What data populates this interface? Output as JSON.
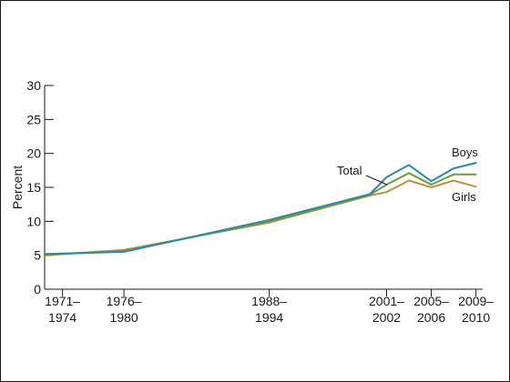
{
  "chart_data": {
    "type": "line",
    "title": "",
    "ylabel": "Percent",
    "xlabel": "",
    "ylim": [
      0,
      30
    ],
    "yticks": [
      0,
      5,
      10,
      15,
      20,
      25,
      30
    ],
    "x_ticks": [
      {
        "x": 1972.5,
        "line1": "1971–",
        "line2": "1974"
      },
      {
        "x": 1978,
        "line1": "1976–",
        "line2": "1980"
      },
      {
        "x": 1991,
        "line1": "1988–",
        "line2": "1994"
      },
      {
        "x": 2001.5,
        "line1": "2001–",
        "line2": "2002"
      },
      {
        "x": 2005.5,
        "line1": "2005–",
        "line2": "2006"
      },
      {
        "x": 2009.5,
        "line1": "2009–",
        "line2": "2010"
      }
    ],
    "x_range": [
      1970.9,
      2010.1
    ],
    "grid": false,
    "series": [
      {
        "name": "Boys",
        "color": "#2a8aa6",
        "x": [
          1971,
          1978,
          1991,
          2000,
          2001.5,
          2003.5,
          2005.5,
          2007.5,
          2009.5
        ],
        "values": [
          5.2,
          5.5,
          10.2,
          14.0,
          16.5,
          18.3,
          15.9,
          17.8,
          18.6
        ]
      },
      {
        "name": "Total",
        "color": "#6e9a3e",
        "x": [
          1971,
          1978,
          1991,
          2000,
          2001.5,
          2003.5,
          2005.5,
          2007.5,
          2009.5
        ],
        "values": [
          5.1,
          5.6,
          10.0,
          13.9,
          15.4,
          17.1,
          15.4,
          16.9,
          16.9
        ]
      },
      {
        "name": "Girls",
        "color": "#b8924a",
        "x": [
          1971,
          1978,
          1991,
          2000,
          2001.5,
          2003.5,
          2005.5,
          2007.5,
          2009.5
        ],
        "values": [
          5.0,
          5.8,
          9.8,
          13.8,
          14.3,
          16.0,
          15.0,
          16.0,
          15.1
        ]
      }
    ]
  }
}
